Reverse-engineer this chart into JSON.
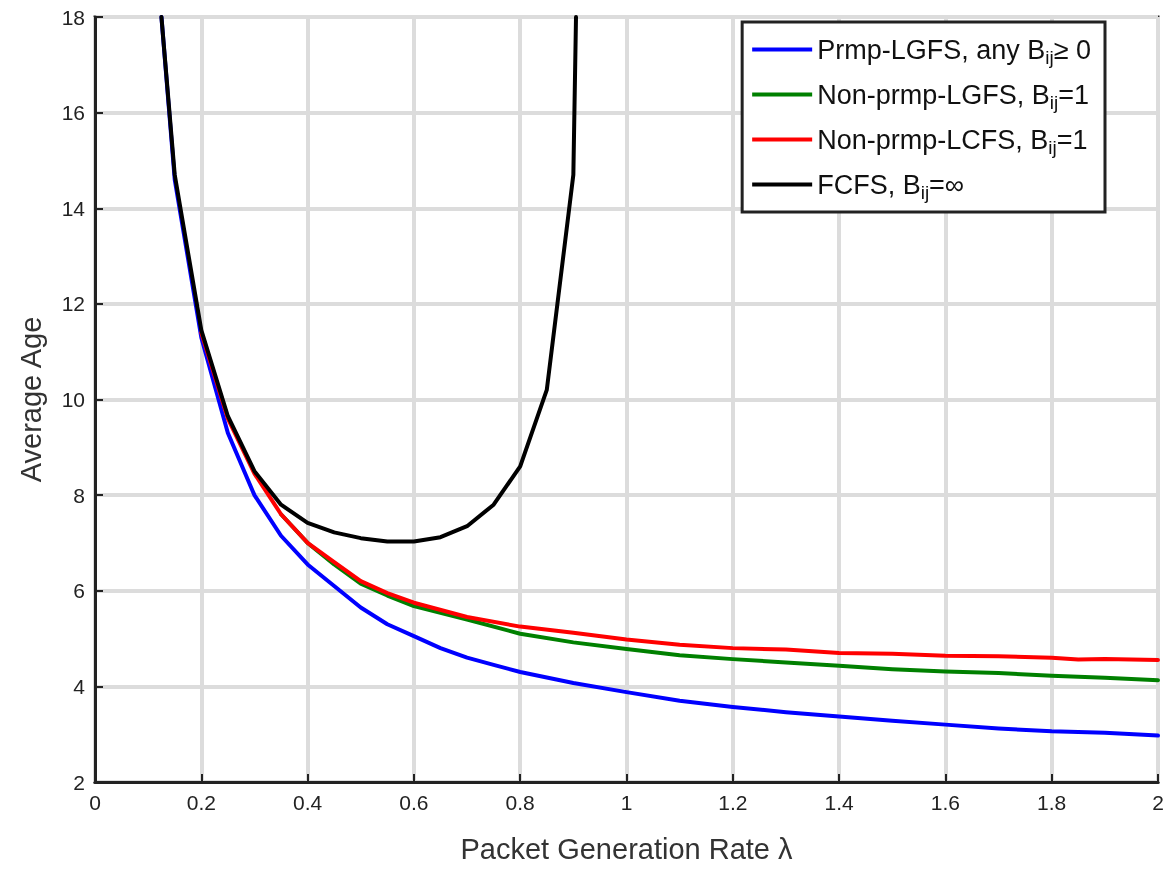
{
  "chart_data": {
    "type": "line",
    "xlabel": "Packet Generation Rate λ",
    "ylabel": "Average Age",
    "xlim": [
      0,
      2
    ],
    "xticks": [
      0,
      0.2,
      0.4,
      0.6,
      0.8,
      1,
      1.2,
      1.4,
      1.6,
      1.8,
      2
    ],
    "ylim": [
      2,
      18
    ],
    "yticks": [
      2,
      4,
      6,
      8,
      10,
      12,
      14,
      16,
      18
    ],
    "grid": true,
    "legend": "top right",
    "marker": "none",
    "line_style": "solid",
    "series": [
      {
        "name": "Prmp-LGFS, any B$_{ij}$≥ 0",
        "color": "#0000ff",
        "x": [
          0.125,
          0.15,
          0.2,
          0.25,
          0.3,
          0.35,
          0.4,
          0.45,
          0.5,
          0.55,
          0.6,
          0.65,
          0.7,
          0.75,
          0.8,
          0.9,
          1.0,
          1.1,
          1.2,
          1.3,
          1.4,
          1.5,
          1.6,
          1.7,
          1.8,
          1.9,
          2.0
        ],
        "values": [
          18,
          14.6,
          11.3,
          9.3,
          8.0,
          7.15,
          6.55,
          6.1,
          5.65,
          5.3,
          5.05,
          4.8,
          4.6,
          4.45,
          4.3,
          4.07,
          3.88,
          3.7,
          3.57,
          3.46,
          3.37,
          3.28,
          3.2,
          3.12,
          3.06,
          3.03,
          2.97
        ]
      },
      {
        "name": "Non-prmp-LGFS, B$_{ij}$=1",
        "color": "#008000",
        "x": [
          0.35,
          0.4,
          0.45,
          0.5,
          0.55,
          0.6,
          0.7,
          0.8,
          0.9,
          1.0,
          1.1,
          1.2,
          1.3,
          1.4,
          1.5,
          1.6,
          1.7,
          1.8,
          1.9,
          2.0
        ],
        "values": [
          7.6,
          7.0,
          6.55,
          6.15,
          5.9,
          5.68,
          5.4,
          5.1,
          4.92,
          4.78,
          4.65,
          4.57,
          4.5,
          4.43,
          4.36,
          4.31,
          4.28,
          4.22,
          4.18,
          4.13
        ]
      },
      {
        "name": "Non-prmp-LCFS, B$_{ij}$=1",
        "color": "#ff0000",
        "x": [
          0.2,
          0.25,
          0.3,
          0.35,
          0.4,
          0.45,
          0.5,
          0.55,
          0.6,
          0.7,
          0.8,
          0.9,
          1.0,
          1.1,
          1.2,
          1.3,
          1.4,
          1.5,
          1.6,
          1.7,
          1.8,
          1.85,
          1.9,
          2.0
        ],
        "values": [
          11.4,
          9.6,
          8.45,
          7.6,
          7.0,
          6.6,
          6.2,
          5.95,
          5.75,
          5.45,
          5.25,
          5.12,
          4.98,
          4.87,
          4.8,
          4.77,
          4.7,
          4.68,
          4.64,
          4.63,
          4.6,
          4.56,
          4.57,
          4.55
        ]
      },
      {
        "name": "FCFS, B$_{ij}$=∞",
        "color": "#000000",
        "x": [
          0.125,
          0.15,
          0.2,
          0.25,
          0.3,
          0.35,
          0.4,
          0.45,
          0.5,
          0.55,
          0.6,
          0.65,
          0.7,
          0.75,
          0.8,
          0.85,
          0.9,
          0.905
        ],
        "values": [
          18,
          14.7,
          11.45,
          9.65,
          8.5,
          7.8,
          7.42,
          7.22,
          7.1,
          7.03,
          7.03,
          7.12,
          7.35,
          7.8,
          8.6,
          10.2,
          14.7,
          18
        ]
      }
    ]
  }
}
